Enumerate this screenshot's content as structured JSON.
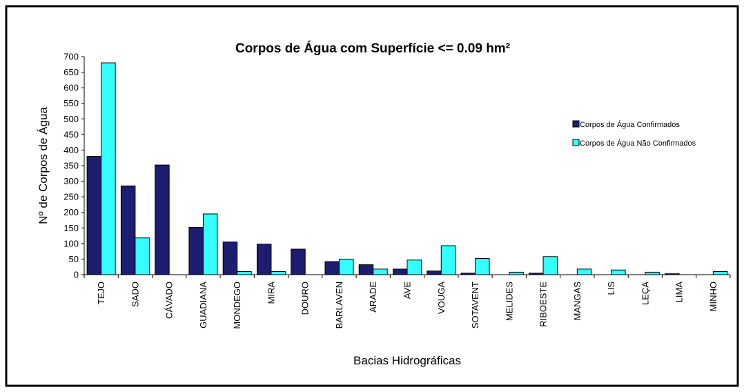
{
  "chart_data": {
    "type": "bar",
    "title": "Corpos de Água com Superfície <= 0.09 hm²",
    "y_label": "Nº de Corpos de Água",
    "x_label": "Bacias Hidrográficas",
    "categories": [
      "TEJO",
      "SADO",
      "CÁVADO",
      "GUADIANA",
      "MONDEGO",
      "MIRA",
      "DOURO",
      "BARLAVEN",
      "ARADE",
      "AVE",
      "VOUGA",
      "SOTAVENT",
      "MELIDES",
      "RIBOESTE",
      "MANGAS",
      "LIS",
      "LEÇA",
      "LIMA",
      "MINHO"
    ],
    "series": [
      {
        "name": "Corpos de Água Confirmados",
        "color": "#1c1c70",
        "values": [
          380,
          285,
          352,
          152,
          105,
          98,
          82,
          42,
          32,
          18,
          12,
          5,
          0,
          5,
          0,
          0,
          0,
          3,
          0
        ]
      },
      {
        "name": "Corpos de Água Não Confirmados",
        "color": "#33ffff",
        "values": [
          680,
          118,
          0,
          195,
          10,
          10,
          0,
          50,
          18,
          47,
          93,
          52,
          8,
          58,
          18,
          15,
          8,
          0,
          10
        ]
      }
    ],
    "ylim": [
      0,
      700
    ],
    "yticks": [
      0,
      50,
      100,
      150,
      200,
      250,
      300,
      350,
      400,
      450,
      500,
      550,
      600,
      650,
      700
    ],
    "grid": false,
    "legend": "right"
  }
}
